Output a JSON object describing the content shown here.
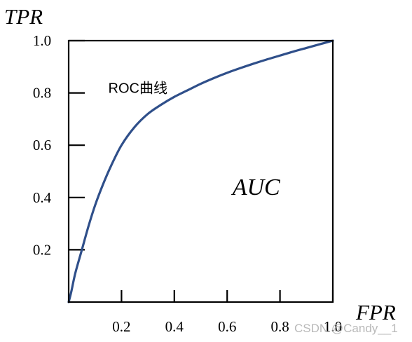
{
  "chart_data": {
    "type": "line",
    "ylabel": "TPR",
    "xlabel": "FPR",
    "xlim": [
      0,
      1
    ],
    "ylim": [
      0,
      1
    ],
    "x_ticks": [
      "0.2",
      "0.4",
      "0.6",
      "0.8",
      "1.0"
    ],
    "x_tick_values": [
      0.2,
      0.4,
      0.6,
      0.8,
      1.0
    ],
    "y_ticks": [
      "0.2",
      "0.4",
      "0.6",
      "0.8",
      "1.0"
    ],
    "y_tick_values": [
      0.2,
      0.4,
      0.6,
      0.8,
      1.0
    ],
    "series": [
      {
        "color": "#2f4f8a",
        "x": [
          0,
          0.01,
          0.025,
          0.05,
          0.075,
          0.1,
          0.13,
          0.16,
          0.2,
          0.25,
          0.3,
          0.35,
          0.4,
          0.45,
          0.5,
          0.55,
          0.6,
          0.65,
          0.7,
          0.75,
          0.8,
          0.85,
          0.9,
          0.95,
          1.0
        ],
        "y": [
          0,
          0.04,
          0.11,
          0.2,
          0.29,
          0.37,
          0.45,
          0.52,
          0.6,
          0.67,
          0.72,
          0.755,
          0.785,
          0.81,
          0.835,
          0.857,
          0.877,
          0.895,
          0.912,
          0.928,
          0.943,
          0.958,
          0.972,
          0.986,
          1.0
        ]
      }
    ],
    "annotations": [
      {
        "text": "ROC曲线",
        "x": 0.15,
        "y": 0.8
      },
      {
        "text": "AUC",
        "x": 0.62,
        "y": 0.41,
        "style": "italic"
      }
    ],
    "grid": false
  },
  "watermark": "CSDN @Candy__1"
}
